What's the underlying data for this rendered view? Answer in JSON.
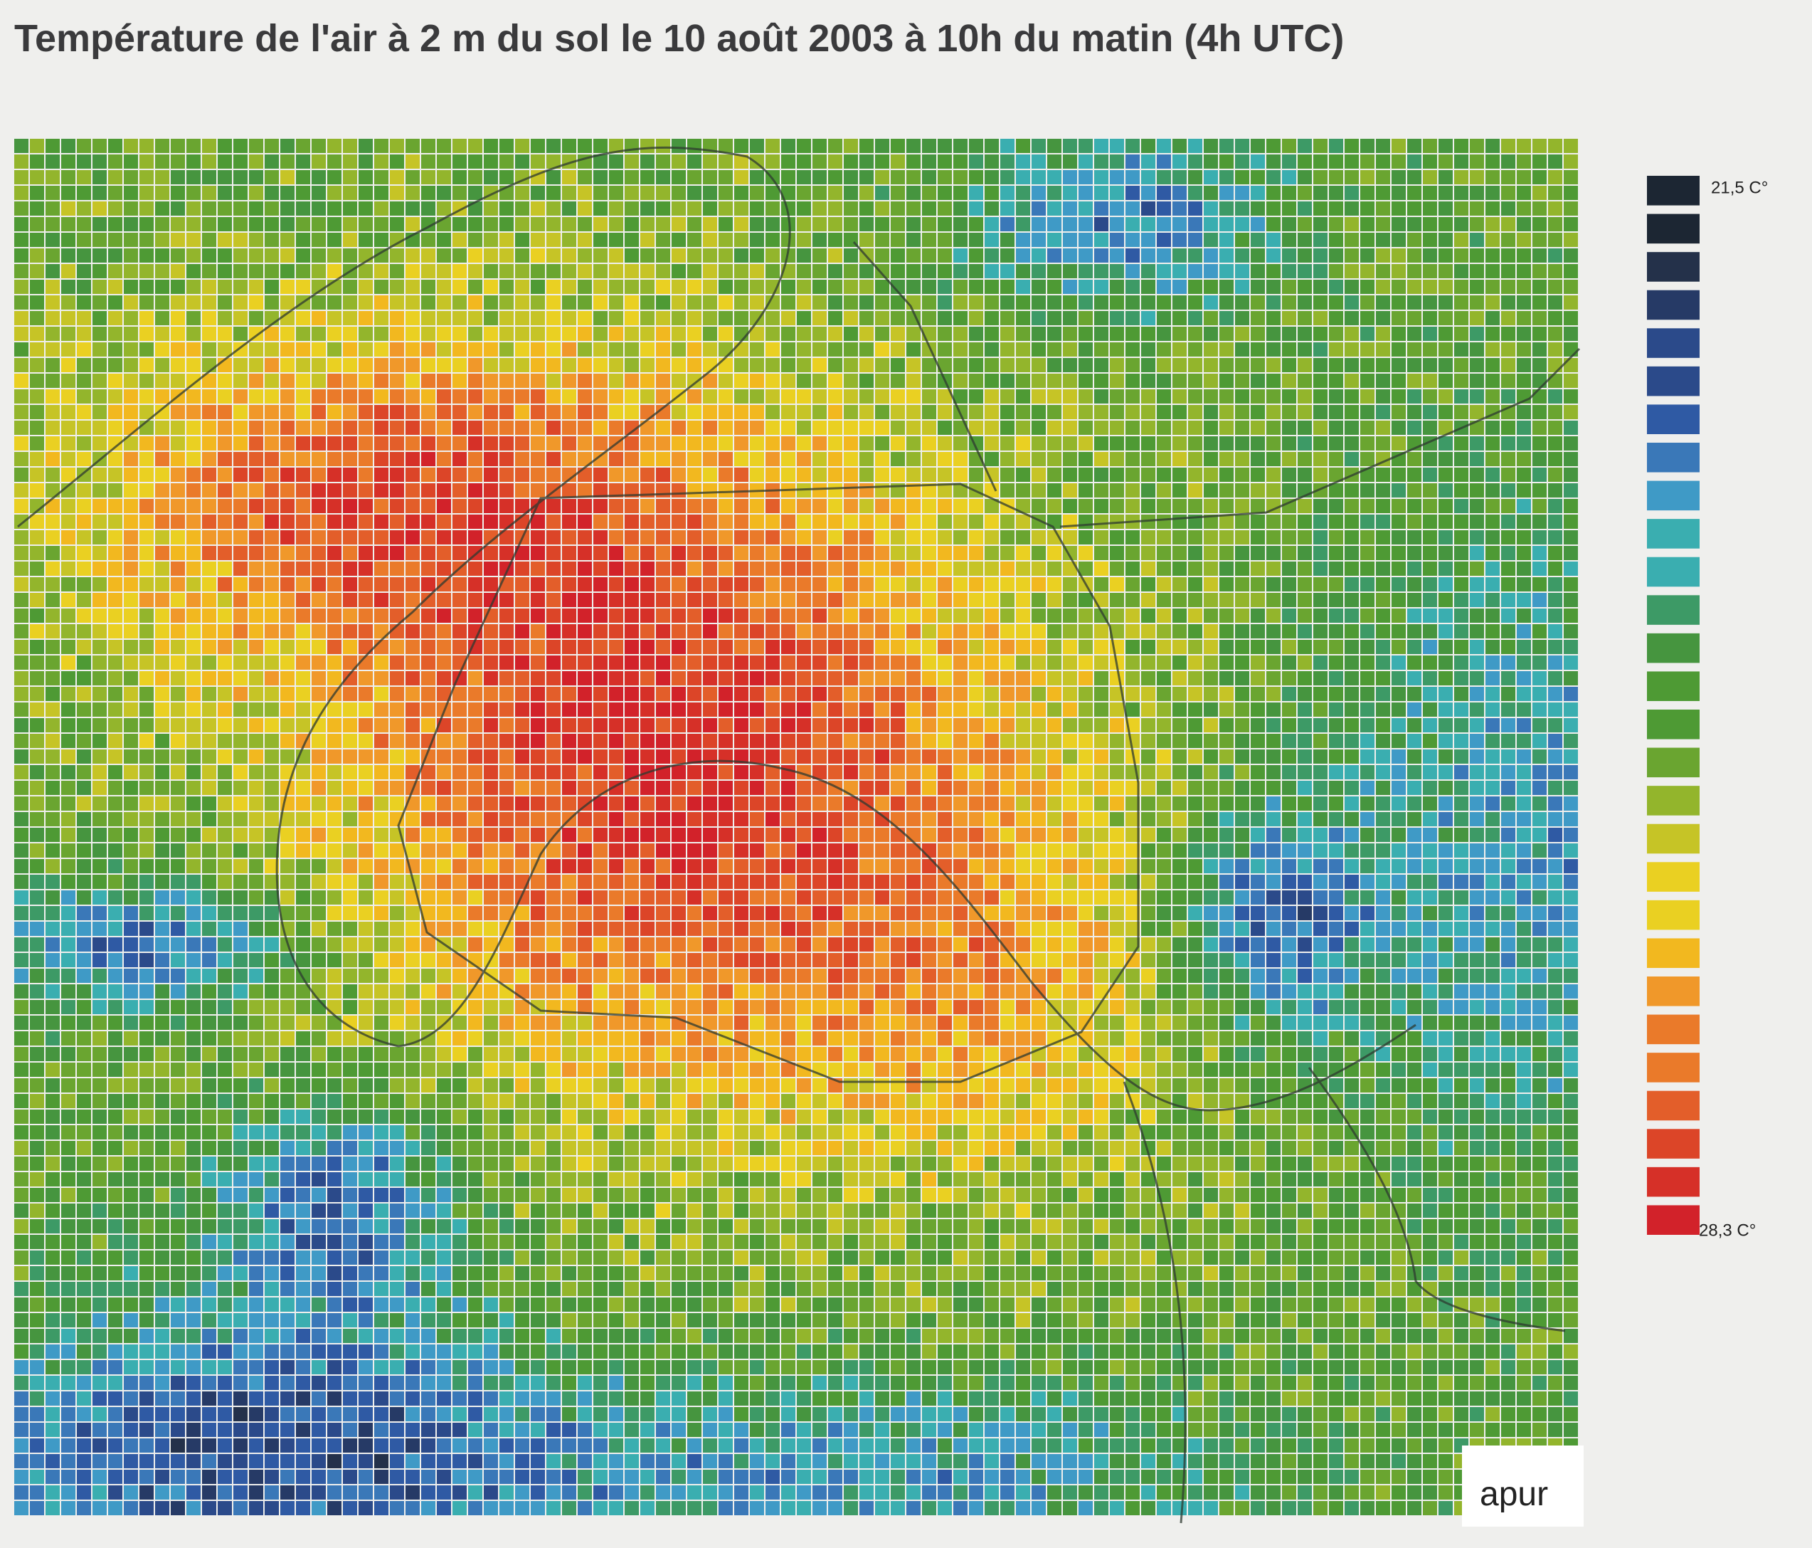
{
  "header": {
    "title": "Température de l'air à 2 m du sol le 10 août 2003 à 10h du matin (4h UTC)"
  },
  "legend": {
    "top_label": "21,5 C°",
    "bottom_label": "28,3 C°"
  },
  "logo": {
    "text": "apur"
  }
}
